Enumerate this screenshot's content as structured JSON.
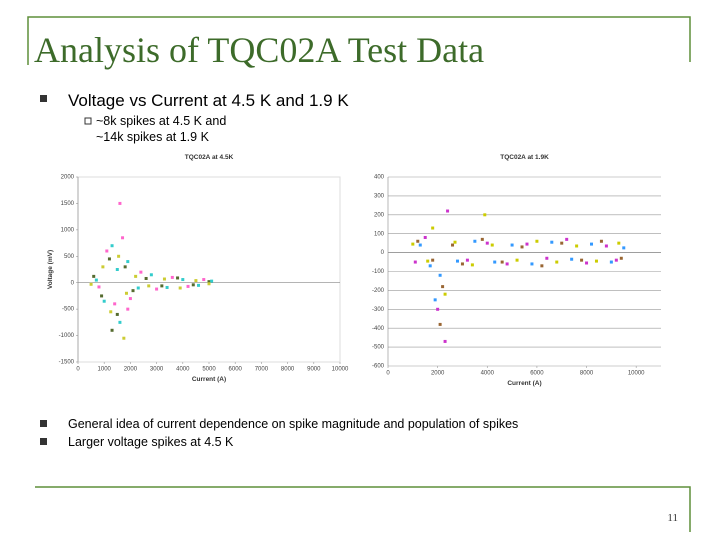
{
  "title": "Analysis of TQC02A Test Data",
  "bullets": [
    "Voltage vs Current at 4.5 K and 1.9 K"
  ],
  "sub_bullets": [
    "~8k spikes at 4.5 K and",
    "~14k spikes at 1.9 K"
  ],
  "bottom_bullets": [
    "General idea of current dependence on spike magnitude and population of spikes",
    "Larger voltage spikes at 4.5 K"
  ],
  "page_number": "11",
  "chart_data": [
    {
      "type": "scatter",
      "title": "TQC02A at 4.5K",
      "xlabel": "Current (A)",
      "ylabel": "Voltage (mV)",
      "xlim": [
        0,
        10000
      ],
      "xticks": [
        0,
        1000,
        2000,
        3000,
        4000,
        5000,
        6000,
        7000,
        8000,
        9000,
        10000
      ],
      "ylim": [
        -1500,
        2000
      ],
      "yticks": [
        -1500,
        -1000,
        -500,
        0,
        500,
        1000,
        1500,
        2000
      ],
      "grid": false,
      "series": [
        {
          "color": "#556b2f",
          "x": [
            600,
            900,
            1200,
            1500,
            1800,
            2100,
            2600,
            3200,
            3800,
            4400,
            5000,
            1300
          ],
          "values": [
            120,
            -250,
            450,
            -600,
            300,
            -150,
            80,
            -60,
            90,
            -40,
            20,
            -900
          ]
        },
        {
          "color": "#ff66cc",
          "x": [
            800,
            1100,
            1400,
            1700,
            2000,
            2400,
            3000,
            3600,
            4200,
            4800,
            1600,
            1900
          ],
          "values": [
            -80,
            600,
            -400,
            850,
            -300,
            200,
            -120,
            100,
            -70,
            60,
            1500,
            -500
          ]
        },
        {
          "color": "#33cccc",
          "x": [
            700,
            1000,
            1300,
            1600,
            1900,
            2300,
            2800,
            3400,
            4000,
            4600,
            5100,
            1500
          ],
          "values": [
            50,
            -350,
            700,
            -750,
            400,
            -100,
            150,
            -90,
            60,
            -50,
            30,
            250
          ]
        },
        {
          "color": "#cccc33",
          "x": [
            500,
            950,
            1250,
            1550,
            1850,
            2200,
            2700,
            3300,
            3900,
            4500,
            5000,
            1750
          ],
          "values": [
            -30,
            300,
            -550,
            500,
            -200,
            120,
            -60,
            70,
            -100,
            40,
            -20,
            -1050
          ]
        }
      ]
    },
    {
      "type": "scatter",
      "title": "TQC02A at 1.9K",
      "xlabel": "Current (A)",
      "xlim": [
        0,
        11000
      ],
      "xticks": [
        0,
        2000,
        4000,
        6000,
        8000,
        10000
      ],
      "ylim": [
        -600,
        400
      ],
      "yticks": [
        -600,
        -500,
        -400,
        -300,
        -200,
        -100,
        0,
        100,
        200,
        300,
        400
      ],
      "grid": true,
      "series": [
        {
          "color": "#996633",
          "x": [
            1200,
            1800,
            2200,
            2600,
            3000,
            3800,
            4600,
            5400,
            6200,
            7000,
            7800,
            8600,
            9400,
            2100
          ],
          "values": [
            60,
            -40,
            -180,
            40,
            -60,
            70,
            -50,
            30,
            -70,
            50,
            -40,
            60,
            -30,
            -380
          ]
        },
        {
          "color": "#cc33cc",
          "x": [
            1100,
            1500,
            2000,
            2400,
            3200,
            4000,
            4800,
            5600,
            6400,
            7200,
            8000,
            8800,
            9200,
            2300
          ],
          "values": [
            -50,
            80,
            -300,
            220,
            -40,
            50,
            -60,
            45,
            -30,
            70,
            -55,
            35,
            -40,
            -470
          ]
        },
        {
          "color": "#3399ff",
          "x": [
            1300,
            1700,
            2100,
            2800,
            3500,
            4300,
            5000,
            5800,
            6600,
            7400,
            8200,
            9000,
            9500,
            1900
          ],
          "values": [
            40,
            -70,
            -120,
            -45,
            60,
            -50,
            40,
            -60,
            55,
            -35,
            45,
            -50,
            25,
            -250
          ]
        },
        {
          "color": "#cccc00",
          "x": [
            1000,
            1600,
            2300,
            2700,
            3400,
            4200,
            3900,
            5200,
            6000,
            6800,
            7600,
            8400,
            9300,
            1800
          ],
          "values": [
            45,
            -45,
            -220,
            55,
            -65,
            40,
            200,
            -40,
            60,
            -50,
            35,
            -45,
            50,
            130
          ]
        }
      ]
    }
  ]
}
